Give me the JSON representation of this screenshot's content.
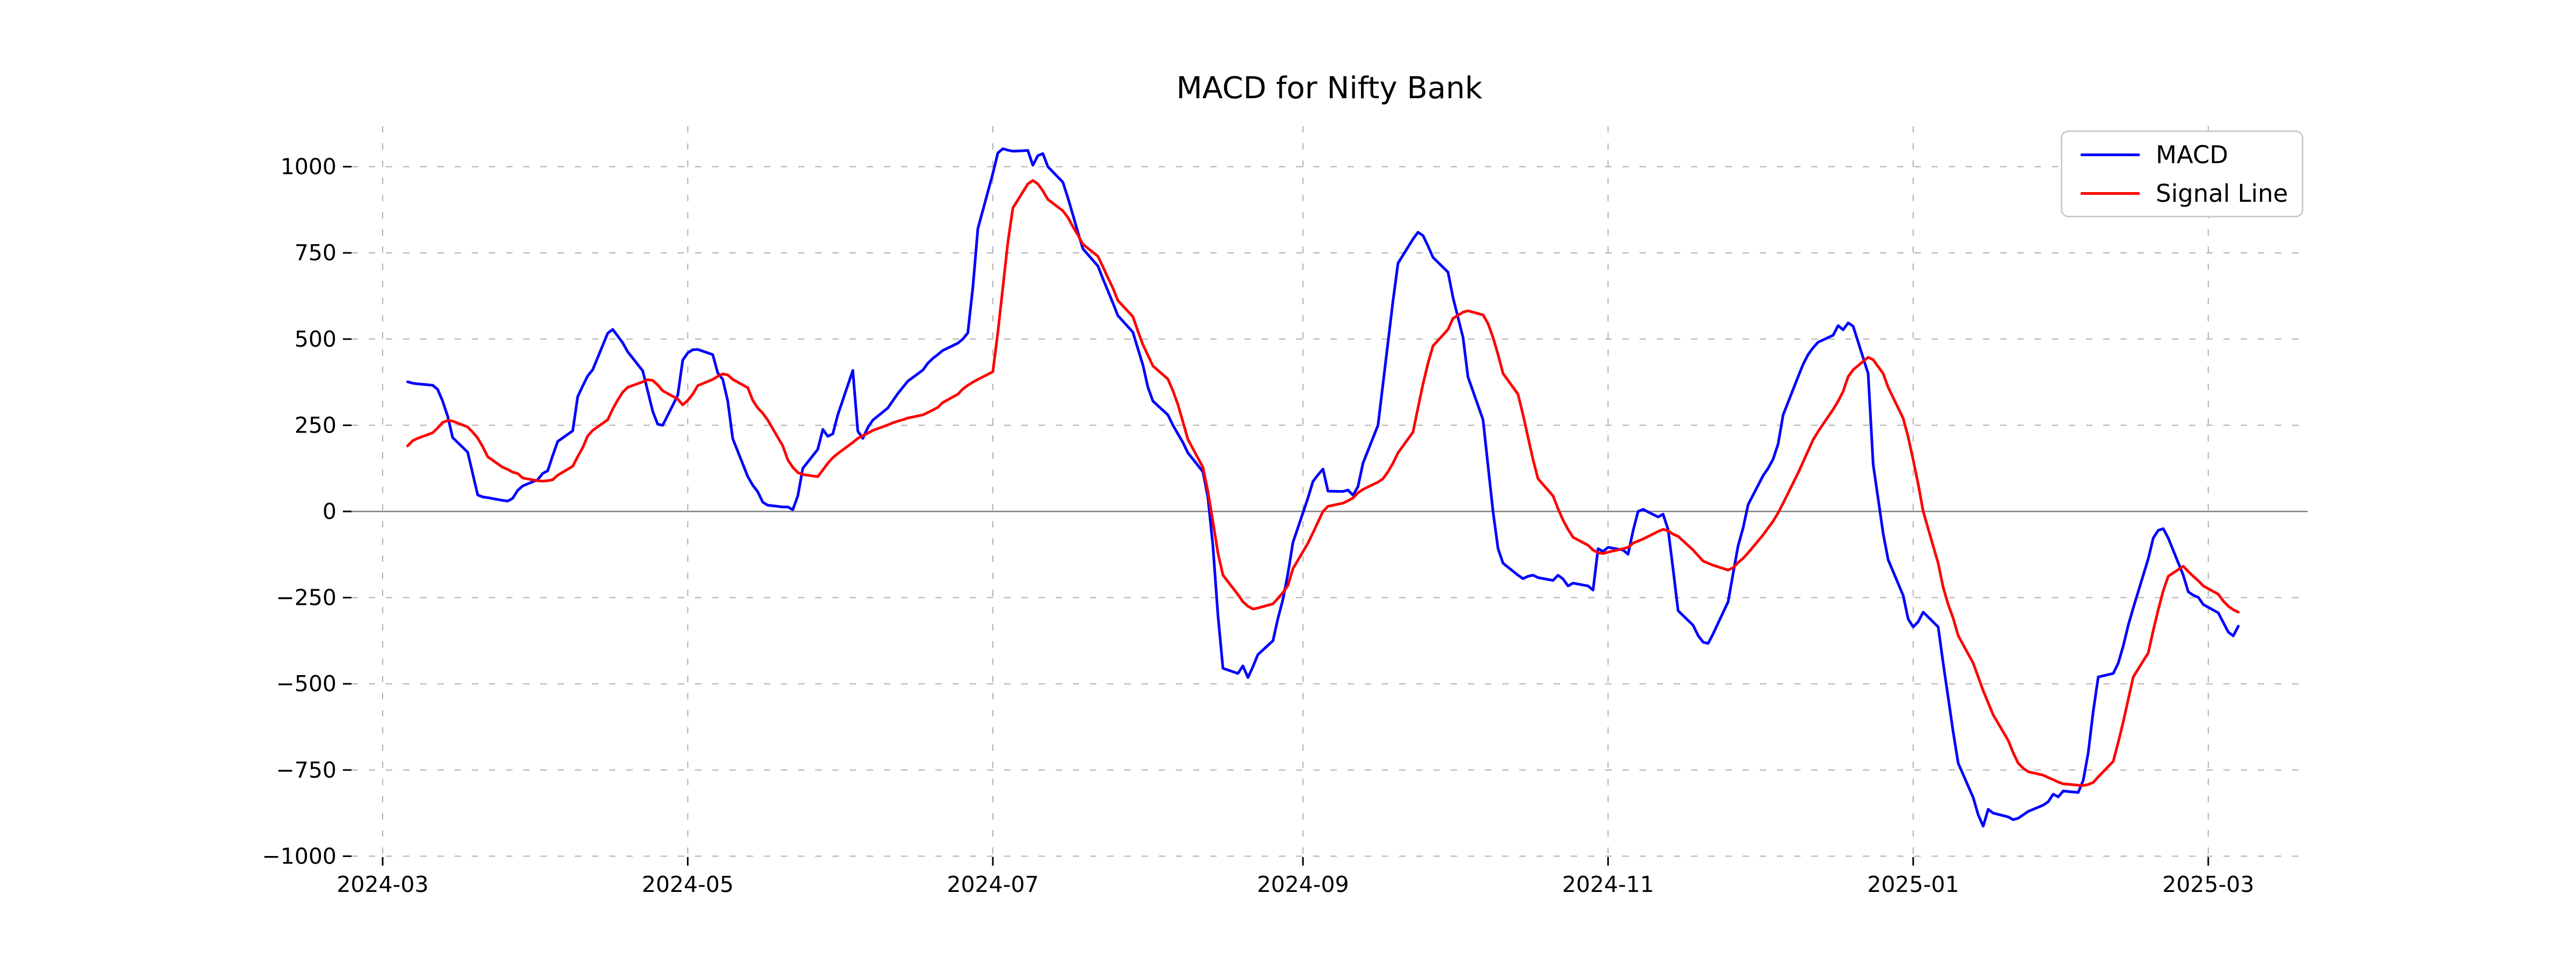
{
  "header": {
    "title": "MACD for Nifty Bank"
  },
  "legend": {
    "items": [
      {
        "label": "MACD",
        "color": "#0000ff"
      },
      {
        "label": "Signal Line",
        "color": "#ff0000"
      }
    ]
  },
  "chart_data": {
    "type": "line",
    "title": "MACD for Nifty Bank",
    "xlabel": "",
    "ylabel": "",
    "grid": true,
    "legend_position": "upper right",
    "zero_line": true,
    "colors": {
      "macd": "#0000ff",
      "signal": "#ff0000",
      "gridline": "#b0b0b0",
      "zero_line": "#808080",
      "tick": "#000000",
      "legend_border": "#cccccc",
      "background": "#ffffff"
    },
    "x_tick_labels": [
      "2024-03",
      "2024-05",
      "2024-07",
      "2024-09",
      "2024-11",
      "2025-01",
      "2025-03"
    ],
    "x_tick_dates": [
      "2024-03-01",
      "2024-05-01",
      "2024-07-01",
      "2024-09-01",
      "2024-11-01",
      "2025-01-01",
      "2025-03-01"
    ],
    "y_ticks": [
      1000,
      750,
      500,
      250,
      0,
      -250,
      -500,
      -750,
      -1000
    ],
    "y_tick_labels": [
      "1000",
      "750",
      "500",
      "250",
      "0",
      "−250",
      "−500",
      "−750",
      "−1000"
    ],
    "ylim": [
      -1030,
      1118
    ],
    "x_range": [
      "2024-03-06",
      "2025-03-07"
    ],
    "series_names": [
      "MACD",
      "Signal Line"
    ],
    "rows": [
      [
        "2024-03-06",
        376,
        190
      ],
      [
        "2024-03-07",
        372,
        205
      ],
      [
        "2024-03-08",
        370,
        212
      ],
      [
        "2024-03-11",
        366,
        228
      ],
      [
        "2024-03-12",
        354,
        242
      ],
      [
        "2024-03-13",
        320,
        258
      ],
      [
        "2024-03-14",
        276,
        264
      ],
      [
        "2024-03-15",
        214,
        262
      ],
      [
        "2024-03-18",
        172,
        245
      ],
      [
        "2024-03-19",
        110,
        230
      ],
      [
        "2024-03-20",
        48,
        213
      ],
      [
        "2024-03-21",
        42,
        188
      ],
      [
        "2024-03-22",
        40,
        159
      ],
      [
        "2024-03-25",
        32,
        128
      ],
      [
        "2024-03-26",
        30,
        122
      ],
      [
        "2024-03-27",
        38,
        114
      ],
      [
        "2024-03-28",
        61,
        110
      ],
      [
        "2024-03-29",
        74,
        97
      ],
      [
        "2024-04-01",
        92,
        89
      ],
      [
        "2024-04-02",
        110,
        88
      ],
      [
        "2024-04-03",
        118,
        89
      ],
      [
        "2024-04-04",
        162,
        92
      ],
      [
        "2024-04-05",
        203,
        105
      ],
      [
        "2024-04-08",
        234,
        131
      ],
      [
        "2024-04-09",
        333,
        159
      ],
      [
        "2024-04-10",
        364,
        185
      ],
      [
        "2024-04-11",
        393,
        219
      ],
      [
        "2024-04-12",
        411,
        235
      ],
      [
        "2024-04-15",
        517,
        266
      ],
      [
        "2024-04-16",
        528,
        297
      ],
      [
        "2024-04-17",
        509,
        323
      ],
      [
        "2024-04-18",
        489,
        346
      ],
      [
        "2024-04-19",
        463,
        360
      ],
      [
        "2024-04-22",
        408,
        376
      ],
      [
        "2024-04-23",
        349,
        382
      ],
      [
        "2024-04-24",
        290,
        380
      ],
      [
        "2024-04-25",
        253,
        367
      ],
      [
        "2024-04-26",
        250,
        350
      ],
      [
        "2024-04-29",
        337,
        326
      ],
      [
        "2024-04-30",
        439,
        309
      ],
      [
        "2024-05-01",
        460,
        322
      ],
      [
        "2024-05-02",
        469,
        340
      ],
      [
        "2024-05-03",
        470,
        365
      ],
      [
        "2024-05-06",
        455,
        383
      ],
      [
        "2024-05-07",
        402,
        392
      ],
      [
        "2024-05-08",
        383,
        399
      ],
      [
        "2024-05-09",
        320,
        396
      ],
      [
        "2024-05-10",
        211,
        383
      ],
      [
        "2024-05-13",
        101,
        359
      ],
      [
        "2024-05-14",
        76,
        322
      ],
      [
        "2024-05-15",
        57,
        300
      ],
      [
        "2024-05-16",
        27,
        285
      ],
      [
        "2024-05-17",
        18,
        265
      ],
      [
        "2024-05-20",
        13,
        190
      ],
      [
        "2024-05-21",
        13,
        150
      ],
      [
        "2024-05-22",
        5,
        128
      ],
      [
        "2024-05-23",
        45,
        113
      ],
      [
        "2024-05-24",
        125,
        107
      ],
      [
        "2024-05-27",
        180,
        101
      ],
      [
        "2024-05-28",
        238,
        120
      ],
      [
        "2024-05-29",
        218,
        140
      ],
      [
        "2024-05-30",
        225,
        156
      ],
      [
        "2024-05-31",
        280,
        168
      ],
      [
        "2024-06-03",
        409,
        200
      ],
      [
        "2024-06-04",
        233,
        212
      ],
      [
        "2024-06-05",
        212,
        220
      ],
      [
        "2024-06-06",
        243,
        227
      ],
      [
        "2024-06-07",
        265,
        235
      ],
      [
        "2024-06-10",
        300,
        251
      ],
      [
        "2024-06-11",
        321,
        257
      ],
      [
        "2024-06-12",
        342,
        262
      ],
      [
        "2024-06-13",
        360,
        266
      ],
      [
        "2024-06-14",
        378,
        271
      ],
      [
        "2024-06-17",
        410,
        280
      ],
      [
        "2024-06-18",
        430,
        287
      ],
      [
        "2024-06-19",
        444,
        294
      ],
      [
        "2024-06-20",
        455,
        302
      ],
      [
        "2024-06-21",
        467,
        316
      ],
      [
        "2024-06-24",
        488,
        340
      ],
      [
        "2024-06-25",
        500,
        355
      ],
      [
        "2024-06-26",
        518,
        366
      ],
      [
        "2024-06-27",
        650,
        375
      ],
      [
        "2024-06-28",
        820,
        383
      ],
      [
        "2024-07-01",
        980,
        405
      ],
      [
        "2024-07-02",
        1040,
        520
      ],
      [
        "2024-07-03",
        1052,
        650
      ],
      [
        "2024-07-04",
        1048,
        780
      ],
      [
        "2024-07-05",
        1045,
        880
      ],
      [
        "2024-07-08",
        1047,
        950
      ],
      [
        "2024-07-09",
        1004,
        960
      ],
      [
        "2024-07-10",
        1032,
        950
      ],
      [
        "2024-07-11",
        1038,
        930
      ],
      [
        "2024-07-12",
        1000,
        905
      ],
      [
        "2024-07-15",
        955,
        872
      ],
      [
        "2024-07-16",
        910,
        853
      ],
      [
        "2024-07-17",
        860,
        826
      ],
      [
        "2024-07-18",
        810,
        802
      ],
      [
        "2024-07-19",
        762,
        775
      ],
      [
        "2024-07-22",
        712,
        740
      ],
      [
        "2024-07-23",
        675,
        710
      ],
      [
        "2024-07-24",
        640,
        678
      ],
      [
        "2024-07-25",
        605,
        648
      ],
      [
        "2024-07-26",
        568,
        612
      ],
      [
        "2024-07-29",
        520,
        565
      ],
      [
        "2024-07-30",
        472,
        523
      ],
      [
        "2024-07-31",
        425,
        484
      ],
      [
        "2024-08-01",
        360,
        453
      ],
      [
        "2024-08-02",
        320,
        422
      ],
      [
        "2024-08-05",
        280,
        384
      ],
      [
        "2024-08-06",
        250,
        350
      ],
      [
        "2024-08-07",
        225,
        310
      ],
      [
        "2024-08-08",
        200,
        260
      ],
      [
        "2024-08-09",
        170,
        209
      ],
      [
        "2024-08-12",
        115,
        128
      ],
      [
        "2024-08-13",
        40,
        58
      ],
      [
        "2024-08-14",
        -100,
        -30
      ],
      [
        "2024-08-15",
        -300,
        -120
      ],
      [
        "2024-08-16",
        -455,
        -185
      ],
      [
        "2024-08-19",
        -470,
        -241
      ],
      [
        "2024-08-20",
        -448,
        -262
      ],
      [
        "2024-08-21",
        -482,
        -275
      ],
      [
        "2024-08-22",
        -450,
        -283
      ],
      [
        "2024-08-23",
        -415,
        -280
      ],
      [
        "2024-08-26",
        -375,
        -268
      ],
      [
        "2024-08-27",
        -310,
        -252
      ],
      [
        "2024-08-28",
        -255,
        -235
      ],
      [
        "2024-08-29",
        -180,
        -215
      ],
      [
        "2024-08-30",
        -90,
        -166
      ],
      [
        "2024-09-02",
        39,
        -92
      ],
      [
        "2024-09-03",
        87,
        -62
      ],
      [
        "2024-09-04",
        106,
        -31
      ],
      [
        "2024-09-05",
        123,
        0
      ],
      [
        "2024-09-06",
        59,
        15
      ],
      [
        "2024-09-09",
        58,
        24
      ],
      [
        "2024-09-10",
        62,
        31
      ],
      [
        "2024-09-11",
        47,
        39
      ],
      [
        "2024-09-12",
        72,
        54
      ],
      [
        "2024-09-13",
        140,
        64
      ],
      [
        "2024-09-16",
        250,
        85
      ],
      [
        "2024-09-17",
        370,
        95
      ],
      [
        "2024-09-18",
        490,
        115
      ],
      [
        "2024-09-19",
        610,
        140
      ],
      [
        "2024-09-20",
        720,
        170
      ],
      [
        "2024-09-23",
        790,
        230
      ],
      [
        "2024-09-24",
        810,
        300
      ],
      [
        "2024-09-25",
        800,
        370
      ],
      [
        "2024-09-26",
        770,
        430
      ],
      [
        "2024-09-27",
        737,
        480
      ],
      [
        "2024-09-30",
        694,
        528
      ],
      [
        "2024-10-01",
        620,
        560
      ],
      [
        "2024-10-03",
        505,
        578
      ],
      [
        "2024-10-04",
        390,
        582
      ],
      [
        "2024-10-07",
        266,
        570
      ],
      [
        "2024-10-08",
        133,
        545
      ],
      [
        "2024-10-09",
        0,
        505
      ],
      [
        "2024-10-10",
        -108,
        455
      ],
      [
        "2024-10-11",
        -150,
        400
      ],
      [
        "2024-10-14",
        -185,
        340
      ],
      [
        "2024-10-15",
        -195,
        280
      ],
      [
        "2024-10-16",
        -188,
        215
      ],
      [
        "2024-10-17",
        -185,
        150
      ],
      [
        "2024-10-18",
        -192,
        95
      ],
      [
        "2024-10-21",
        -200,
        45
      ],
      [
        "2024-10-22",
        -185,
        8
      ],
      [
        "2024-10-23",
        -196,
        -25
      ],
      [
        "2024-10-24",
        -216,
        -52
      ],
      [
        "2024-10-25",
        -208,
        -75
      ],
      [
        "2024-10-28",
        -216,
        -98
      ],
      [
        "2024-10-29",
        -228,
        -112
      ],
      [
        "2024-10-30",
        -108,
        -120
      ],
      [
        "2024-10-31",
        -116,
        -122
      ],
      [
        "2024-11-01",
        -104,
        -118
      ],
      [
        "2024-11-04",
        -112,
        -108
      ],
      [
        "2024-11-05",
        -124,
        -104
      ],
      [
        "2024-11-06",
        -56,
        -92
      ],
      [
        "2024-11-07",
        0,
        -86
      ],
      [
        "2024-11-08",
        6,
        -80
      ],
      [
        "2024-11-11",
        -16,
        -58
      ],
      [
        "2024-11-12",
        -8,
        -52
      ],
      [
        "2024-11-13",
        -52,
        -56
      ],
      [
        "2024-11-14",
        -168,
        -66
      ],
      [
        "2024-11-15",
        -288,
        -72
      ],
      [
        "2024-11-18",
        -330,
        -112
      ],
      [
        "2024-11-19",
        -360,
        -128
      ],
      [
        "2024-11-20",
        -379,
        -144
      ],
      [
        "2024-11-21",
        -383,
        -150
      ],
      [
        "2024-11-22",
        -355,
        -156
      ],
      [
        "2024-11-25",
        -262,
        -170
      ],
      [
        "2024-11-26",
        -180,
        -163
      ],
      [
        "2024-11-27",
        -100,
        -148
      ],
      [
        "2024-11-28",
        -48,
        -136
      ],
      [
        "2024-11-29",
        20,
        -120
      ],
      [
        "2024-12-02",
        104,
        -68
      ],
      [
        "2024-12-03",
        125,
        -48
      ],
      [
        "2024-12-04",
        152,
        -28
      ],
      [
        "2024-12-05",
        196,
        -4
      ],
      [
        "2024-12-06",
        280,
        24
      ],
      [
        "2024-12-09",
        391,
        112
      ],
      [
        "2024-12-10",
        427,
        144
      ],
      [
        "2024-12-11",
        455,
        176
      ],
      [
        "2024-12-12",
        475,
        208
      ],
      [
        "2024-12-13",
        491,
        232
      ],
      [
        "2024-12-16",
        511,
        296
      ],
      [
        "2024-12-17",
        539,
        320
      ],
      [
        "2024-12-18",
        527,
        348
      ],
      [
        "2024-12-19",
        547,
        391
      ],
      [
        "2024-12-20",
        537,
        411
      ],
      [
        "2024-12-23",
        400,
        447
      ],
      [
        "2024-12-24",
        136,
        440
      ],
      [
        "2024-12-26",
        -64,
        400
      ],
      [
        "2024-12-27",
        -140,
        360
      ],
      [
        "2024-12-30",
        -244,
        270
      ],
      [
        "2024-12-31",
        -312,
        216
      ],
      [
        "2025-01-01",
        -335,
        150
      ],
      [
        "2025-01-02",
        -320,
        80
      ],
      [
        "2025-01-03",
        -292,
        0
      ],
      [
        "2025-01-06",
        -335,
        -150
      ],
      [
        "2025-01-07",
        -440,
        -220
      ],
      [
        "2025-01-08",
        -540,
        -270
      ],
      [
        "2025-01-09",
        -640,
        -310
      ],
      [
        "2025-01-10",
        -730,
        -360
      ],
      [
        "2025-01-13",
        -830,
        -440
      ],
      [
        "2025-01-14",
        -880,
        -480
      ],
      [
        "2025-01-15",
        -913,
        -520
      ],
      [
        "2025-01-16",
        -864,
        -555
      ],
      [
        "2025-01-17",
        -875,
        -590
      ],
      [
        "2025-01-20",
        -886,
        -664
      ],
      [
        "2025-01-21",
        -894,
        -700
      ],
      [
        "2025-01-22",
        -890,
        -730
      ],
      [
        "2025-01-23",
        -880,
        -745
      ],
      [
        "2025-01-24",
        -870,
        -755
      ],
      [
        "2025-01-27",
        -852,
        -765
      ],
      [
        "2025-01-28",
        -842,
        -772
      ],
      [
        "2025-01-29",
        -820,
        -778
      ],
      [
        "2025-01-30",
        -828,
        -785
      ],
      [
        "2025-01-31",
        -811,
        -790
      ],
      [
        "2025-02-03",
        -815,
        -794
      ],
      [
        "2025-02-04",
        -780,
        -795
      ],
      [
        "2025-02-05",
        -700,
        -792
      ],
      [
        "2025-02-06",
        -580,
        -786
      ],
      [
        "2025-02-07",
        -480,
        -770
      ],
      [
        "2025-02-10",
        -470,
        -725
      ],
      [
        "2025-02-11",
        -440,
        -670
      ],
      [
        "2025-02-12",
        -390,
        -610
      ],
      [
        "2025-02-13",
        -330,
        -545
      ],
      [
        "2025-02-14",
        -280,
        -480
      ],
      [
        "2025-02-17",
        -137,
        -410
      ],
      [
        "2025-02-18",
        -77,
        -345
      ],
      [
        "2025-02-19",
        -55,
        -285
      ],
      [
        "2025-02-20",
        -50,
        -230
      ],
      [
        "2025-02-21",
        -77,
        -188
      ],
      [
        "2025-02-24",
        -185,
        -159
      ],
      [
        "2025-02-25",
        -233,
        -174
      ],
      [
        "2025-02-26",
        -243,
        -188
      ],
      [
        "2025-02-27",
        -249,
        -201
      ],
      [
        "2025-02-28",
        -270,
        -216
      ],
      [
        "2025-03-03",
        -294,
        -240
      ],
      [
        "2025-03-04",
        -322,
        -260
      ],
      [
        "2025-03-05",
        -350,
        -275
      ],
      [
        "2025-03-06",
        -361,
        -285
      ],
      [
        "2025-03-07",
        -333,
        -292
      ]
    ]
  }
}
